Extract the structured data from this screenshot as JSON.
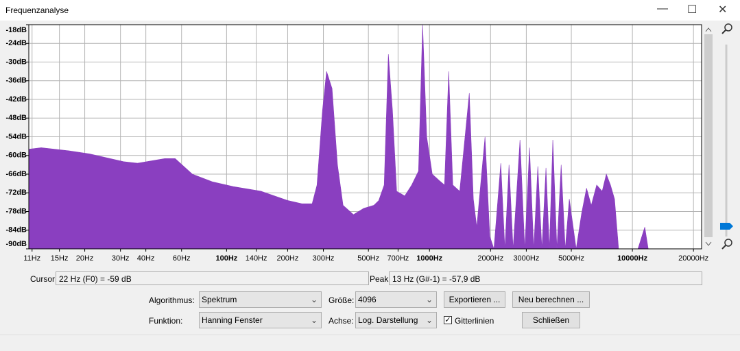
{
  "window": {
    "title": "Frequenzanalyse"
  },
  "chart_data": {
    "type": "area",
    "color": "#8a3fc0",
    "log_x": true,
    "grid": true,
    "x": [
      10.6,
      12.2,
      16.7,
      21.1,
      31.1,
      36.4,
      49.6,
      55.8,
      60.3,
      67.8,
      85.5,
      108,
      148,
      201,
      235,
      264,
      279,
      297,
      311,
      331,
      352,
      375,
      422,
      474,
      532,
      562,
      598,
      627,
      657,
      689,
      755,
      817,
      883,
      925,
      969,
      1032,
      1115,
      1186,
      1244,
      1303,
      1409,
      1571,
      1645,
      1710,
      1878,
      1983,
      2078,
      2246,
      2353,
      2466,
      2583,
      2793,
      2949,
      3112,
      3264,
      3420,
      3581,
      3751,
      3899,
      4054,
      4246,
      4456,
      4667,
      4887,
      5284,
      5623,
      5943,
      6270,
      6668,
      7096,
      7440,
      7798,
      8166,
      8551,
      10650,
      11510,
      11970,
      21930
    ],
    "values": [
      -58,
      -57.5,
      -58.5,
      -59.5,
      -62,
      -62.5,
      -61,
      -61,
      -63,
      -66,
      -68.5,
      -70,
      -71.5,
      -74.5,
      -75.5,
      -75.5,
      -69.5,
      -45.5,
      -33,
      -38.5,
      -63,
      -76,
      -79,
      -77,
      -76,
      -74.5,
      -69.5,
      -27.5,
      -45.5,
      -71.5,
      -73,
      -69.5,
      -65,
      -18,
      -54,
      -66,
      -68,
      -69.5,
      -33,
      -69.5,
      -71.5,
      -40,
      -74,
      -83,
      -54,
      -86,
      -90,
      -62.5,
      -90,
      -63,
      -90,
      -55,
      -90,
      -57.5,
      -90,
      -63.5,
      -90,
      -64,
      -90,
      -55,
      -90,
      -63,
      -90,
      -74,
      -90,
      -78.5,
      -70.5,
      -76,
      -69.5,
      -71.5,
      -66,
      -69.5,
      -74,
      -90,
      -90,
      -83,
      -90,
      -90
    ],
    "xlim": [
      10.6,
      21930
    ],
    "ylim": [
      -90,
      -18
    ],
    "xticks": [
      {
        "value": 11,
        "label": "11Hz"
      },
      {
        "value": 15,
        "label": "15Hz"
      },
      {
        "value": 20,
        "label": "20Hz"
      },
      {
        "value": 30,
        "label": "30Hz"
      },
      {
        "value": 40,
        "label": "40Hz"
      },
      {
        "value": 60,
        "label": "60Hz"
      },
      {
        "value": 100,
        "label": "100Hz"
      },
      {
        "value": 140,
        "label": "140Hz"
      },
      {
        "value": 200,
        "label": "200Hz"
      },
      {
        "value": 300,
        "label": "300Hz"
      },
      {
        "value": 500,
        "label": "500Hz"
      },
      {
        "value": 700,
        "label": "700Hz"
      },
      {
        "value": 1000,
        "label": "1000Hz"
      },
      {
        "value": 2000,
        "label": "2000Hz"
      },
      {
        "value": 3000,
        "label": "3000Hz"
      },
      {
        "value": 5000,
        "label": "5000Hz"
      },
      {
        "value": 10000,
        "label": "10000Hz"
      },
      {
        "value": 20000,
        "label": "20000Hz"
      }
    ],
    "yticks": [
      {
        "value": -18,
        "label": "-18dB"
      },
      {
        "value": -24,
        "label": "-24dB"
      },
      {
        "value": -30,
        "label": "-30dB"
      },
      {
        "value": -36,
        "label": "-36dB"
      },
      {
        "value": -42,
        "label": "-42dB"
      },
      {
        "value": -48,
        "label": "-48dB"
      },
      {
        "value": -54,
        "label": "-54dB"
      },
      {
        "value": -60,
        "label": "-60dB"
      },
      {
        "value": -66,
        "label": "-66dB"
      },
      {
        "value": -72,
        "label": "-72dB"
      },
      {
        "value": -78,
        "label": "-78dB"
      },
      {
        "value": -84,
        "label": "-84dB"
      },
      {
        "value": -90,
        "label": "-90dB"
      }
    ]
  },
  "cursor": {
    "label": "Cursor:",
    "value": "22 Hz (F0) = -59 dB"
  },
  "peak": {
    "label": "Peak:",
    "value": "13 Hz (G#-1) = -57,9 dB"
  },
  "controls": {
    "algorithm_label": "Algorithmus:",
    "algorithm": "Spektrum",
    "size_label": "Größe:",
    "size": "4096",
    "export": "Exportieren ...",
    "recompute": "Neu berechnen ...",
    "function_label": "Funktion:",
    "function": "Hanning Fenster",
    "axis_label": "Achse:",
    "axis": "Log. Darstellung",
    "grid_label": "Gitterlinien",
    "grid_checked": true,
    "close": "Schließen"
  }
}
